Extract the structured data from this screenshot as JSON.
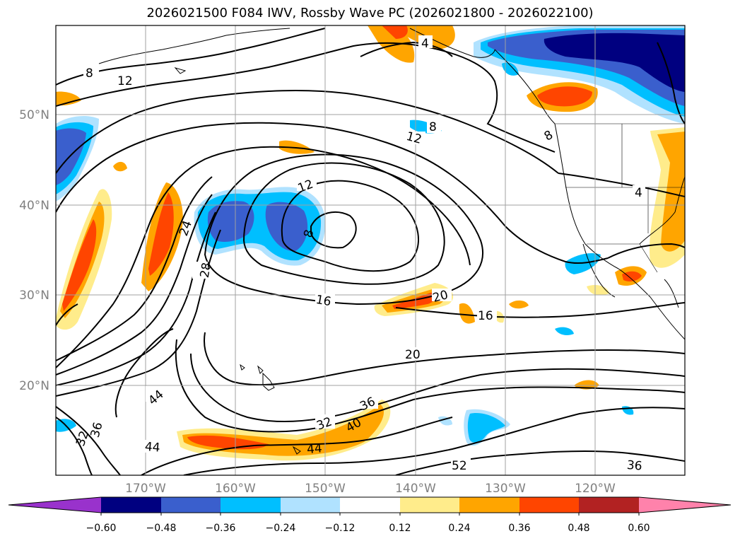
{
  "title": "2026021500 F084 IWV, Rossby Wave PC (2026021800 - 2026022100)",
  "lat_labels": [
    "50°N",
    "40°N",
    "30°N",
    "20°N"
  ],
  "lon_labels": [
    "170°W",
    "160°W",
    "150°W",
    "140°W",
    "130°W",
    "120°W"
  ],
  "contour_labels": [
    "8",
    "12",
    "4",
    "8",
    "12",
    "8",
    "12",
    "8",
    "4",
    "24",
    "28",
    "16",
    "20",
    "16",
    "20",
    "44",
    "36",
    "32",
    "36",
    "32",
    "40",
    "44",
    "44",
    "52",
    "36"
  ],
  "colorbar": {
    "ticks": [
      "−0.60",
      "−0.48",
      "−0.36",
      "−0.24",
      "−0.12",
      "0.12",
      "0.24",
      "0.36",
      "0.48",
      "0.60"
    ],
    "colors": [
      "#9932cc",
      "#000080",
      "#3a5fcd",
      "#00bfff",
      "#b0e2ff",
      "#ffffff",
      "#ffec8b",
      "#ffa500",
      "#ff4500",
      "#b22222",
      "#ff82ab"
    ]
  },
  "colors": {
    "neg_strong": "#000080",
    "neg_mid": "#3a5fcd",
    "neg_weak": "#00bfff",
    "neg_faint": "#b0e2ff",
    "pos_faint": "#ffec8b",
    "pos_weak": "#ffa500",
    "pos_mid": "#ff4500",
    "grid": "#a0a0a0",
    "axis_label": "#808080"
  }
}
